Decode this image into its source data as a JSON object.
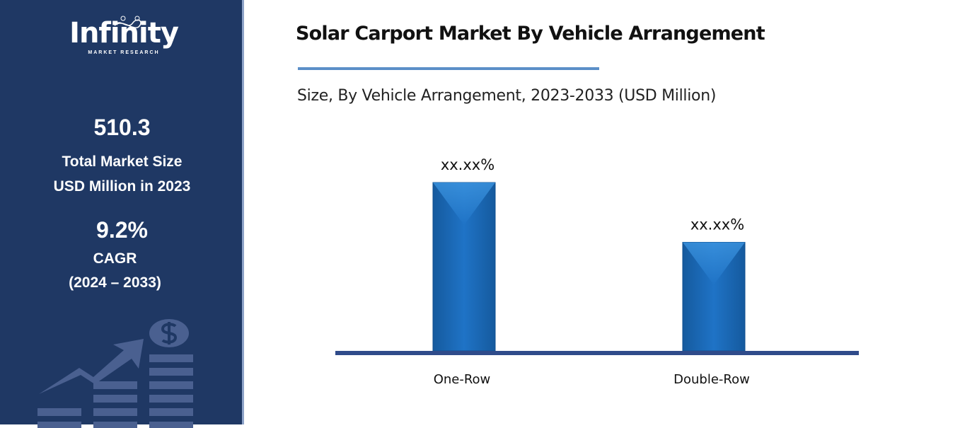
{
  "sidebar": {
    "logo_text": "Infinity",
    "logo_subtext": "MARKET RESEARCH",
    "market_size": "510.3",
    "market_size_label_1": "Total Market Size",
    "market_size_label_2": "USD Million in 2023",
    "cagr": "9.2%",
    "cagr_label": "CAGR",
    "cagr_period": "(2024 – 2033)",
    "background_color": "#1f3864"
  },
  "chart_data": {
    "type": "bar",
    "title": "Solar Carport Market By Vehicle Arrangement",
    "subtitle": "Size, By Vehicle Arrangement, 2023-2033 (USD Million)",
    "categories": [
      "One-Row",
      "Double-Row"
    ],
    "values": [
      100,
      64.5
    ],
    "data_labels": [
      "xx.xx%",
      "xx.xx%"
    ],
    "bar_color": "#1f6fbf",
    "axis_color": "#2f4b8a",
    "grid": false
  }
}
